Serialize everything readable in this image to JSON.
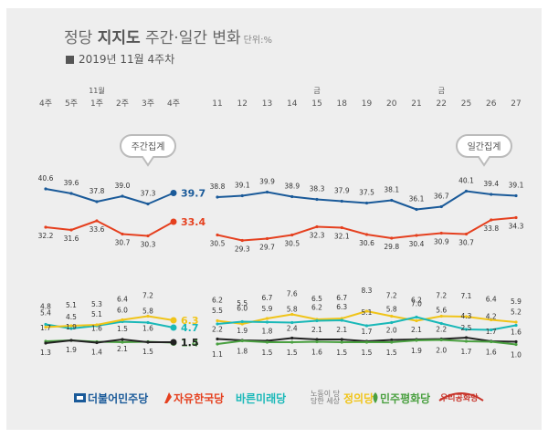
{
  "header": {
    "title_part1": "정당 ",
    "title_bold": "지지도",
    "title_part2": " 주간·일간 변화",
    "unit": "단위:%",
    "subtitle": "2019년 11월 4주차"
  },
  "callouts": {
    "weekly": "주간집계",
    "daily": "일간집계"
  },
  "chart_data": [
    {
      "type": "line",
      "name_label": "주간집계",
      "month_marker": "11월",
      "x": [
        "4주",
        "5주",
        "1주",
        "2주",
        "3주",
        "4주"
      ],
      "series": [
        {
          "name": "더불어민주당",
          "color": "#1a5a99",
          "values": [
            40.6,
            39.6,
            37.8,
            39.0,
            37.3,
            39.7
          ]
        },
        {
          "name": "자유한국당",
          "color": "#e5401f",
          "values": [
            32.2,
            31.6,
            33.6,
            30.7,
            30.3,
            33.4
          ]
        },
        {
          "name": "바른미래당",
          "color": "#19b8b8",
          "values": [
            5.4,
            4.5,
            5.1,
            6.0,
            5.8,
            4.7
          ]
        },
        {
          "name": "정의당",
          "color": "#f0c419",
          "values": [
            4.8,
            5.1,
            5.3,
            6.4,
            7.2,
            6.3
          ]
        },
        {
          "name": "민주평화당",
          "color": "#4aa040",
          "values": [
            1.7,
            1.9,
            1.6,
            1.5,
            1.6,
            1.4
          ]
        },
        {
          "name": "우리공화당",
          "color": "#222222",
          "values": [
            1.3,
            1.9,
            1.4,
            2.1,
            1.5,
            1.5
          ]
        }
      ]
    },
    {
      "type": "line",
      "name_label": "일간집계",
      "x": [
        "11",
        "12",
        "13",
        "14",
        "15",
        "18",
        "19",
        "20",
        "21",
        "22",
        "25",
        "26",
        "27"
      ],
      "day_markers": {
        "15": "금",
        "22": "금"
      },
      "series": [
        {
          "name": "더불어민주당",
          "color": "#1a5a99",
          "values": [
            38.8,
            39.1,
            39.9,
            38.9,
            38.3,
            37.9,
            37.5,
            38.1,
            36.1,
            36.7,
            40.1,
            39.4,
            39.1
          ]
        },
        {
          "name": "자유한국당",
          "color": "#e5401f",
          "values": [
            30.5,
            29.3,
            29.7,
            30.5,
            32.3,
            32.1,
            30.6,
            29.8,
            30.4,
            30.9,
            30.7,
            33.8,
            34.3
          ]
        },
        {
          "name": "정의당",
          "color": "#f0c419",
          "values": [
            6.2,
            5.5,
            6.7,
            7.6,
            6.5,
            6.7,
            8.3,
            7.2,
            6.2,
            7.2,
            7.1,
            6.4,
            5.9
          ]
        },
        {
          "name": "바른미래당",
          "color": "#19b8b8",
          "values": [
            5.5,
            6.0,
            5.9,
            5.8,
            6.2,
            6.3,
            5.1,
            5.8,
            7.0,
            5.6,
            4.3,
            4.2,
            5.2
          ]
        },
        {
          "name": "우리공화당",
          "color": "#222222",
          "values": [
            2.2,
            1.9,
            1.8,
            2.4,
            2.1,
            2.1,
            1.7,
            2.0,
            2.1,
            2.2,
            2.5,
            1.7,
            1.6
          ]
        },
        {
          "name": "민주평화당",
          "color": "#4aa040",
          "values": [
            1.1,
            1.8,
            1.5,
            1.5,
            1.6,
            1.5,
            1.5,
            1.5,
            1.9,
            2.0,
            1.7,
            1.6,
            1.0
          ]
        }
      ]
    }
  ],
  "legend": {
    "items": [
      {
        "label": "더불어민주당",
        "color": "#1a5a99"
      },
      {
        "label": "자유한국당",
        "color": "#e5401f"
      },
      {
        "label": "바른미래당",
        "color": "#19b8b8"
      },
      {
        "label": "정의당",
        "color": "#f0c419",
        "note": "노동이 당당한 세상"
      },
      {
        "label": "민주평화당",
        "color": "#4aa040"
      },
      {
        "label": "우리공화당",
        "color": "#c8342a"
      }
    ]
  }
}
